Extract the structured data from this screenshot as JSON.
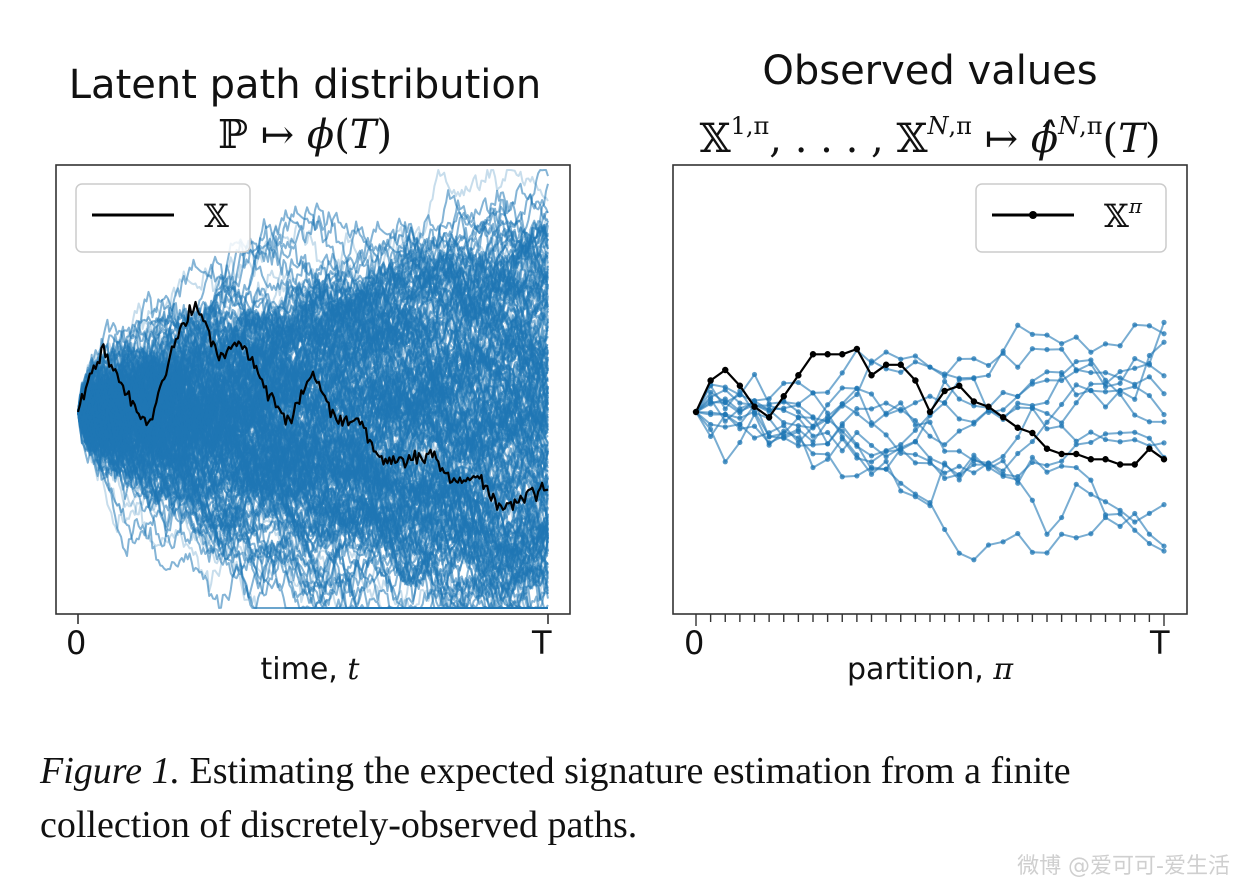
{
  "figure": {
    "left_panel": {
      "title": "Latent path distribution",
      "math_parts": [
        "ℙ ↦ ",
        "ϕ",
        "(",
        "T",
        ")"
      ],
      "legend_label": "𝕏",
      "xlabel_prefix": "time, ",
      "xlabel_var": "t",
      "tick_start": "0",
      "tick_end": "T"
    },
    "right_panel": {
      "title": "Observed values",
      "legend_label": "𝕏",
      "legend_sup": "π",
      "xlabel_prefix": "partition, ",
      "xlabel_var": "π",
      "tick_start": "0",
      "tick_end": "T"
    },
    "caption": {
      "label": "Figure 1.",
      "text": " Estimating the expected signature estimation from a finite collection of discretely-observed paths."
    },
    "watermark": "微博 @爱可可-爱生活",
    "colors": {
      "sample_paths": "#1f77b4",
      "highlight_path": "#000000",
      "axes": "#333333"
    }
  },
  "chart_data": [
    {
      "type": "line",
      "series": [
        {
          "name": "𝕏",
          "x": [
            0,
            0.05,
            0.1,
            0.15,
            0.2,
            0.25,
            0.3,
            0.35,
            0.4,
            0.45,
            0.5,
            0.55,
            0.6,
            0.65,
            0.7,
            0.75,
            0.8,
            0.85,
            0.9,
            0.95,
            1
          ],
          "values": [
            0,
            0.45,
            0.15,
            -0.1,
            0.45,
            0.75,
            0.4,
            0.5,
            0.15,
            -0.05,
            0.25,
            -0.05,
            -0.1,
            -0.35,
            -0.35,
            -0.3,
            -0.5,
            -0.45,
            -0.7,
            -0.6,
            -0.55
          ]
        }
      ],
      "xticks": [
        "0",
        "T"
      ]
    },
    {
      "type": "line",
      "partition_points": 33,
      "series": [
        {
          "name": "𝕏",
          "x": [
            0,
            0.03125,
            0.0625,
            0.09375,
            0.125,
            0.15625,
            0.1875,
            0.21875,
            0.25,
            0.28125,
            0.3125,
            0.34375,
            0.375,
            0.40625,
            0.4375,
            0.46875,
            0.5,
            0.53125,
            0.5625,
            0.59375,
            0.625,
            0.65625,
            0.6875,
            0.71875,
            0.75,
            0.78125,
            0.8125,
            0.84375,
            0.875,
            0.90625,
            0.9375,
            0.96875,
            1
          ],
          "values": [
            0,
            0.3,
            0.4,
            0.25,
            0.05,
            -0.05,
            0.15,
            0.35,
            0.55,
            0.55,
            0.55,
            0.6,
            0.35,
            0.45,
            0.45,
            0.3,
            0.0,
            0.2,
            0.25,
            0.1,
            0.05,
            -0.05,
            -0.15,
            -0.2,
            -0.35,
            -0.4,
            -0.4,
            -0.45,
            -0.45,
            -0.5,
            -0.5,
            -0.35,
            -0.45
          ]
        }
      ],
      "xticks": [
        "0",
        "T"
      ]
    }
  ]
}
